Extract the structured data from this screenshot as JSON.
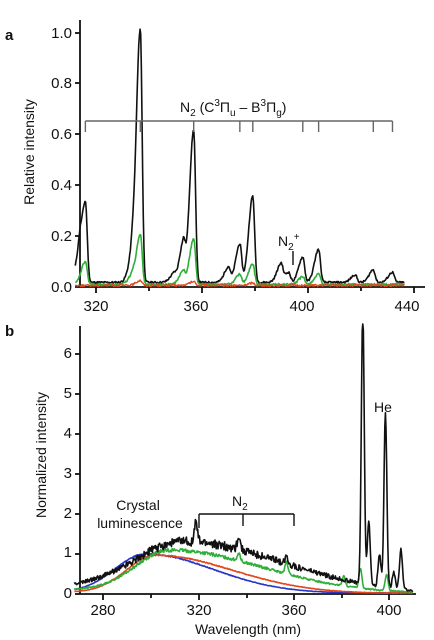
{
  "chart_data": [
    {
      "panel": "a",
      "type": "line",
      "xlim": [
        312,
        442
      ],
      "ylim": [
        0,
        1.05
      ],
      "xticks": [
        "320",
        "360",
        "400",
        "440"
      ],
      "yticks": [
        "0.0",
        "0.2",
        "0.4",
        "0.6",
        "0.8",
        "1.0"
      ],
      "ylabel": "Relative intensity",
      "xlabel": "",
      "grid": false,
      "annotations": {
        "band_label": "N2 (C3Πu – B3Πg)",
        "band_label_parts": [
          "N",
          "2",
          " (C",
          "3",
          "Π",
          "u",
          " – B",
          "3",
          "Π",
          "g",
          ")"
        ],
        "band_ticks": [
          315.9,
          337.1,
          357.7,
          375.5,
          380.5,
          399.8,
          405.9,
          427.0,
          434.4
        ],
        "ion_label": "N2+",
        "ion_label_parts": [
          "N",
          "2",
          "+"
        ],
        "ion_position": 391.4
      },
      "series": [
        {
          "color": "#111111",
          "width": 1.6,
          "baseline": 0.018,
          "peaks": [
            {
              "x": 313.6,
              "y": 0.08
            },
            {
              "x": 315.9,
              "y": 0.32
            },
            {
              "x": 333.9,
              "y": 0.08
            },
            {
              "x": 337.1,
              "y": 1.0
            },
            {
              "x": 350.0,
              "y": 0.03
            },
            {
              "x": 353.7,
              "y": 0.15
            },
            {
              "x": 357.7,
              "y": 0.6
            },
            {
              "x": 371.1,
              "y": 0.06
            },
            {
              "x": 375.5,
              "y": 0.15
            },
            {
              "x": 380.5,
              "y": 0.34
            },
            {
              "x": 391.4,
              "y": 0.07
            },
            {
              "x": 394.3,
              "y": 0.04
            },
            {
              "x": 399.8,
              "y": 0.1
            },
            {
              "x": 405.9,
              "y": 0.13
            },
            {
              "x": 420.0,
              "y": 0.03
            },
            {
              "x": 427.0,
              "y": 0.05
            },
            {
              "x": 434.4,
              "y": 0.04
            }
          ]
        },
        {
          "color": "#2fae3a",
          "width": 1.6,
          "baseline": 0.01,
          "peaks": [
            {
              "x": 315.9,
              "y": 0.09
            },
            {
              "x": 333.9,
              "y": 0.03
            },
            {
              "x": 337.1,
              "y": 0.2
            },
            {
              "x": 353.7,
              "y": 0.05
            },
            {
              "x": 357.7,
              "y": 0.18
            },
            {
              "x": 375.5,
              "y": 0.04
            },
            {
              "x": 380.5,
              "y": 0.08
            },
            {
              "x": 399.8,
              "y": 0.03
            },
            {
              "x": 405.9,
              "y": 0.04
            }
          ]
        },
        {
          "color": "#e2471c",
          "width": 1.4,
          "baseline": 0.006,
          "peaks": [
            {
              "x": 337.1,
              "y": 0.02
            },
            {
              "x": 357.7,
              "y": 0.015
            },
            {
              "x": 380.5,
              "y": 0.01
            }
          ]
        }
      ]
    },
    {
      "panel": "b",
      "type": "line",
      "xlim": [
        265,
        412
      ],
      "ylim": [
        0,
        7
      ],
      "xticks": [
        "280",
        "320",
        "360",
        "400"
      ],
      "yticks": [
        "0",
        "1",
        "2",
        "3",
        "4",
        "5",
        "6"
      ],
      "xlabel": "Wavelength (nm)",
      "ylabel": "Normalized intensity",
      "grid": false,
      "annotations": {
        "crystal_label_lines": [
          "Crystal",
          "luminescence"
        ],
        "n2_label": "N2",
        "n2_label_parts": [
          "N",
          "2"
        ],
        "n2_bracket": [
          320,
          360
        ],
        "n2_mid": 337,
        "he_label": "He",
        "he_position": 398
      },
      "series": [
        {
          "color": "#2a35c8",
          "width": 1.6,
          "amp": 0.95,
          "center": 298,
          "width_left": 13,
          "width_right": 28,
          "floor": 0.05,
          "peaks": []
        },
        {
          "color": "#e2471c",
          "width": 1.6,
          "amp": 0.92,
          "center": 302,
          "width_left": 12,
          "width_right": 32,
          "floor": 0.05,
          "peaks": []
        },
        {
          "color": "#2fae3a",
          "width": 1.6,
          "amp": 0.98,
          "center": 308,
          "width_left": 14,
          "width_right": 38,
          "floor": 0.12,
          "peaks": [
            {
              "x": 337,
              "y": 0.2
            },
            {
              "x": 357,
              "y": 0.3
            },
            {
              "x": 381,
              "y": 0.25
            },
            {
              "x": 388,
              "y": 0.5
            },
            {
              "x": 399,
              "y": 0.4
            }
          ]
        },
        {
          "color": "#111111",
          "width": 1.6,
          "amp": 1.12,
          "center": 314,
          "width_left": 20,
          "width_right": 40,
          "floor": 0.2,
          "peaks": [
            {
              "x": 319,
              "y": 0.5
            },
            {
              "x": 337,
              "y": 0.35
            },
            {
              "x": 357,
              "y": 0.2
            },
            {
              "x": 389,
              "y": 6.9
            },
            {
              "x": 391.5,
              "y": 1.6
            },
            {
              "x": 396,
              "y": 0.8
            },
            {
              "x": 398.5,
              "y": 4.35
            },
            {
              "x": 402,
              "y": 0.4
            },
            {
              "x": 405,
              "y": 1.0
            }
          ]
        }
      ]
    }
  ]
}
